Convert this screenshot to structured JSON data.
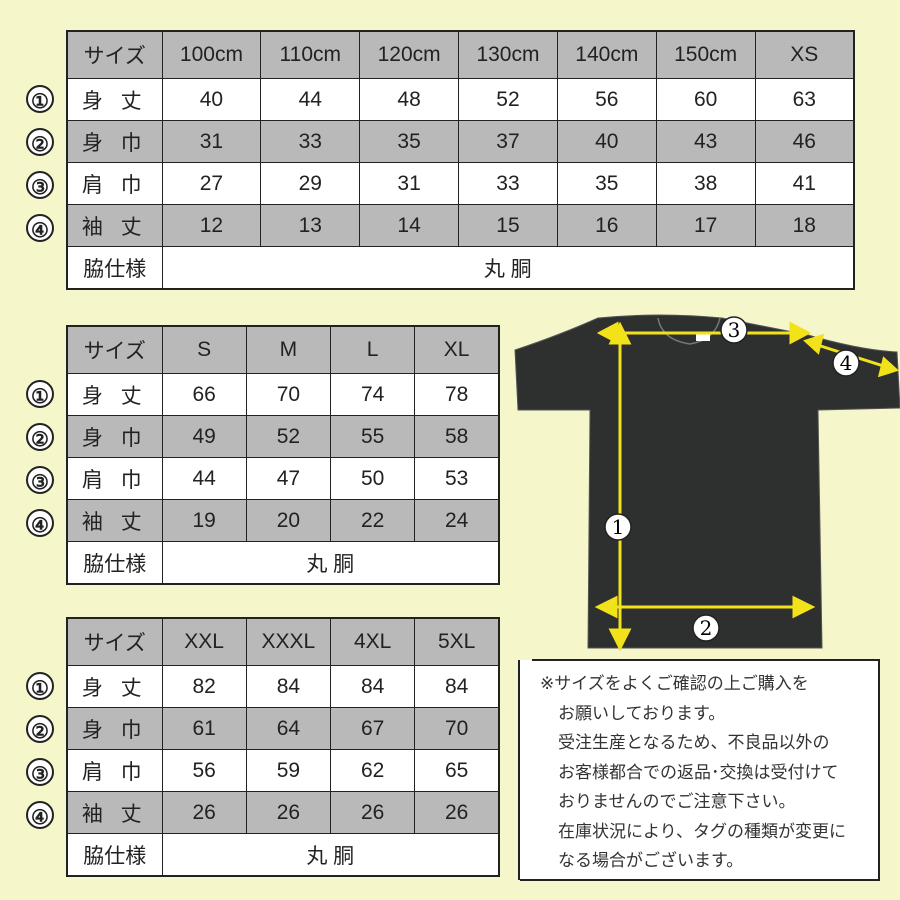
{
  "row_labels": {
    "header": "サイズ",
    "length": "身 丈",
    "width": "身 巾",
    "shoulder": "肩 巾",
    "sleeve": "袖 丈",
    "side": "脇仕様"
  },
  "row_markers": [
    "①",
    "②",
    "③",
    "④"
  ],
  "tables": [
    {
      "sizes": [
        "100cm",
        "110cm",
        "120cm",
        "130cm",
        "140cm",
        "150cm",
        "XS"
      ],
      "length": [
        "40",
        "44",
        "48",
        "52",
        "56",
        "60",
        "63"
      ],
      "width": [
        "31",
        "33",
        "35",
        "37",
        "40",
        "43",
        "46"
      ],
      "shoulder": [
        "27",
        "29",
        "31",
        "33",
        "35",
        "38",
        "41"
      ],
      "sleeve": [
        "12",
        "13",
        "14",
        "15",
        "16",
        "17",
        "18"
      ],
      "side": "丸 胴"
    },
    {
      "sizes": [
        "S",
        "M",
        "L",
        "XL"
      ],
      "length": [
        "66",
        "70",
        "74",
        "78"
      ],
      "width": [
        "49",
        "52",
        "55",
        "58"
      ],
      "shoulder": [
        "44",
        "47",
        "50",
        "53"
      ],
      "sleeve": [
        "19",
        "20",
        "22",
        "24"
      ],
      "side": "丸 胴"
    },
    {
      "sizes": [
        "XXL",
        "XXXL",
        "4XL",
        "5XL"
      ],
      "length": [
        "82",
        "84",
        "84",
        "84"
      ],
      "width": [
        "61",
        "64",
        "67",
        "70"
      ],
      "shoulder": [
        "56",
        "59",
        "62",
        "65"
      ],
      "sleeve": [
        "26",
        "26",
        "26",
        "26"
      ],
      "side": "丸 胴"
    }
  ],
  "diagram": {
    "markers": [
      "1",
      "2",
      "3",
      "4"
    ],
    "shirt_color": "#2e302f",
    "arrow_color": "#f2e21a"
  },
  "note": {
    "lines": [
      "※サイズをよくご確認の上ご購入を",
      "お願いしております。",
      "受注生産となるため、不良品以外の",
      "お客様都合での返品･交換は受付けて",
      "おりませんのでご注意下さい。",
      "在庫状況により、タグの種類が変更に",
      "なる場合がございます。"
    ]
  }
}
